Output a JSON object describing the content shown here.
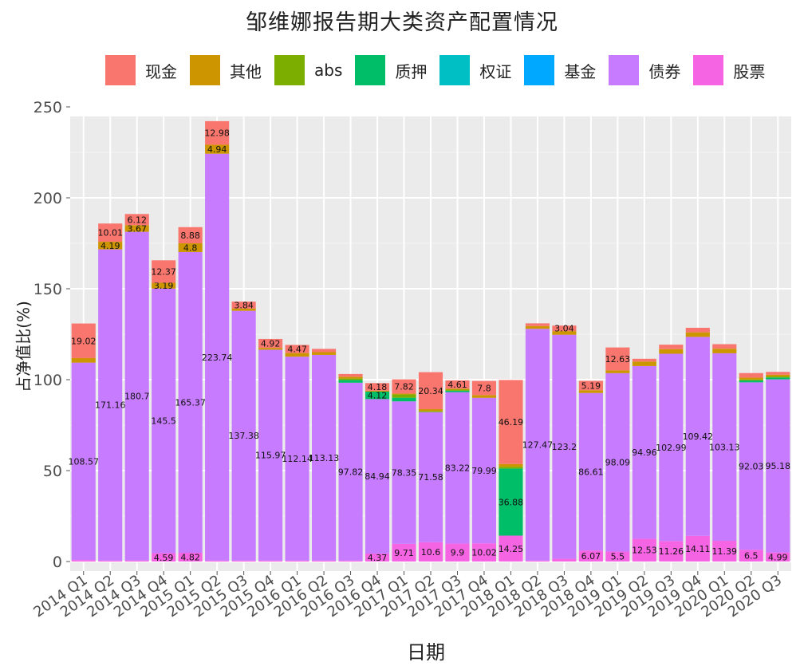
{
  "chart_data": {
    "type": "bar",
    "stacked": true,
    "title": "邹维娜报告期大类资产配置情况",
    "xlabel": "日期",
    "ylabel": "占净值比(%)",
    "ylim": [
      0,
      250
    ],
    "yticks": [
      0,
      50,
      100,
      150,
      200,
      250
    ],
    "grid": true,
    "legend_position": "top",
    "categories": [
      "2014 Q1",
      "2014 Q2",
      "2014 Q3",
      "2014 Q4",
      "2015 Q1",
      "2015 Q2",
      "2015 Q3",
      "2015 Q4",
      "2016 Q1",
      "2016 Q2",
      "2016 Q3",
      "2016 Q4",
      "2017 Q1",
      "2017 Q2",
      "2017 Q3",
      "2017 Q4",
      "2018 Q1",
      "2018 Q2",
      "2018 Q3",
      "2018 Q4",
      "2019 Q1",
      "2019 Q2",
      "2019 Q3",
      "2019 Q4",
      "2020 Q1",
      "2020 Q2",
      "2020 Q3"
    ],
    "series": [
      {
        "name": "股票",
        "color": "#F564E3",
        "values": [
          0.8,
          0.5,
          0.6,
          4.59,
          4.82,
          0.5,
          0.5,
          0.5,
          0.5,
          0.5,
          0.5,
          4.37,
          9.71,
          10.6,
          9.9,
          10.02,
          14.25,
          0.5,
          1.5,
          6.07,
          5.5,
          12.53,
          11.26,
          14.11,
          11.39,
          6.5,
          4.99
        ],
        "labels": [
          "",
          "",
          "",
          "4.59",
          "4.82",
          "",
          "",
          "",
          "",
          "",
          "",
          "4.37",
          "9.71",
          "10.6",
          "9.9",
          "10.02",
          "14.25",
          "",
          "",
          "6.07",
          "5.5",
          "12.53",
          "11.26",
          "14.11",
          "11.39",
          "6.5",
          "4.99"
        ]
      },
      {
        "name": "债券",
        "color": "#C77CFF",
        "values": [
          108.57,
          171.16,
          180.7,
          145.5,
          165.37,
          223.74,
          137.38,
          115.97,
          112.14,
          113.13,
          97.82,
          84.94,
          78.35,
          71.58,
          83.22,
          79.99,
          0,
          127.47,
          123.2,
          86.61,
          98.09,
          94.96,
          102.99,
          109.42,
          103.13,
          92.03,
          95.18
        ],
        "labels": [
          "108.57",
          "171.16",
          "180.7",
          "145.5",
          "165.37",
          "223.74",
          "137.38",
          "115.97",
          "112.14",
          "113.13",
          "97.82",
          "84.94",
          "78.35",
          "71.58",
          "83.22",
          "79.99",
          "",
          "127.47",
          "123.2",
          "86.61",
          "98.09",
          "94.96",
          "102.99",
          "109.42",
          "103.13",
          "92.03",
          "95.18"
        ]
      },
      {
        "name": "基金",
        "color": "#00A9FF",
        "values": [
          0,
          0,
          0,
          0,
          0,
          0,
          0,
          0,
          0,
          0,
          0,
          0,
          0,
          0,
          0,
          0,
          0,
          0,
          0,
          0,
          0,
          0,
          0,
          0,
          0,
          0,
          0
        ],
        "labels": []
      },
      {
        "name": "权证",
        "color": "#00BFC4",
        "values": [
          0,
          0,
          0,
          0,
          0,
          0,
          0,
          0,
          0,
          0,
          0,
          0,
          0,
          0,
          0,
          0,
          0,
          0,
          0,
          0,
          0,
          0,
          0,
          0,
          0,
          0,
          0
        ],
        "labels": []
      },
      {
        "name": "质押",
        "color": "#00BE67",
        "values": [
          0,
          0,
          0,
          0,
          0,
          0,
          0,
          0,
          0,
          0,
          1.5,
          4.12,
          2.0,
          0,
          0.8,
          0,
          36.88,
          0,
          0,
          0,
          0,
          0,
          0,
          0,
          0,
          1.0,
          1.0
        ],
        "labels": [
          "",
          "",
          "",
          "",
          "",
          "",
          "",
          "",
          "",
          "",
          "",
          "4.12",
          "",
          "",
          "",
          "",
          "36.88",
          "",
          "",
          "",
          "",
          "",
          "",
          "",
          "",
          "",
          ""
        ]
      },
      {
        "name": "abs",
        "color": "#7CAE00",
        "values": [
          0,
          0,
          0,
          0,
          0,
          0,
          0,
          0,
          0,
          0,
          0.8,
          0,
          1.8,
          0.6,
          0.6,
          0,
          1.0,
          0,
          0,
          0,
          0,
          0,
          0,
          0,
          0,
          0.6,
          0.6
        ],
        "labels": []
      },
      {
        "name": "其他",
        "color": "#CD9600",
        "values": [
          2.5,
          4.19,
          3.67,
          3.19,
          4.8,
          4.94,
          1.2,
          1.0,
          2.0,
          1.5,
          1.0,
          0.5,
          0.5,
          1.0,
          0.5,
          1.5,
          1.5,
          1.5,
          2.0,
          1.5,
          1.5,
          2.5,
          2.5,
          2.5,
          2.5,
          1.0,
          1.0
        ],
        "labels": [
          "",
          "4.19",
          "3.67",
          "3.19",
          "4.8",
          "4.94",
          "",
          "",
          "",
          "",
          "",
          "",
          "",
          "",
          "",
          "",
          "",
          "",
          "",
          "",
          "",
          "",
          "",
          "",
          "",
          "",
          ""
        ]
      },
      {
        "name": "现金",
        "color": "#F8766D",
        "values": [
          19.02,
          10.01,
          6.12,
          12.37,
          8.88,
          12.98,
          3.84,
          4.92,
          4.47,
          1.8,
          1.5,
          4.18,
          7.82,
          20.34,
          4.61,
          7.8,
          46.19,
          1.5,
          3.04,
          5.19,
          12.63,
          1.5,
          2.5,
          2.5,
          2.5,
          2.5,
          1.5
        ],
        "labels": [
          "19.02",
          "10.01",
          "6.12",
          "12.37",
          "8.88",
          "12.98",
          "3.84",
          "4.92",
          "4.47",
          "",
          "",
          "4.18",
          "7.82",
          "20.34",
          "4.61",
          "7.8",
          "46.19",
          "",
          "3.04",
          "5.19",
          "12.63",
          "",
          "",
          "",
          "",
          "",
          ""
        ]
      }
    ]
  },
  "legend": {
    "items": [
      {
        "label": "现金",
        "color": "#F8766D"
      },
      {
        "label": "其他",
        "color": "#CD9600"
      },
      {
        "label": "abs",
        "color": "#7CAE00"
      },
      {
        "label": "质押",
        "color": "#00BE67"
      },
      {
        "label": "权证",
        "color": "#00BFC4"
      },
      {
        "label": "基金",
        "color": "#00A9FF"
      },
      {
        "label": "债券",
        "color": "#C77CFF"
      },
      {
        "label": "股票",
        "color": "#F564E3"
      }
    ]
  }
}
